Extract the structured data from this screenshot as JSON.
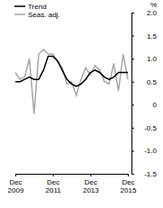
{
  "chart_data": {
    "type": "line",
    "ylabel": "%",
    "categories": [
      "Dec 2009",
      null,
      null,
      null,
      null,
      null,
      null,
      null,
      "Dec 2011",
      null,
      null,
      null,
      null,
      null,
      null,
      null,
      "Dec 2013",
      null,
      null,
      null,
      null,
      null,
      null,
      null,
      "Dec 2015"
    ],
    "series": [
      {
        "name": "Trend",
        "color": "#000000",
        "values": [
          0.5,
          0.5,
          0.55,
          0.6,
          0.55,
          0.55,
          0.75,
          1.05,
          1.05,
          0.95,
          0.75,
          0.55,
          0.45,
          0.4,
          0.45,
          0.55,
          0.7,
          0.75,
          0.7,
          0.6,
          0.55,
          0.6,
          0.7,
          0.7,
          0.7
        ]
      },
      {
        "name": "Seas. adj.",
        "color": "#a6a6a6",
        "values": [
          0.7,
          0.55,
          0.6,
          1.0,
          -0.2,
          1.1,
          1.2,
          1.1,
          1.1,
          0.95,
          0.8,
          0.45,
          0.5,
          0.2,
          0.55,
          0.8,
          0.65,
          0.85,
          0.75,
          0.5,
          0.45,
          0.9,
          0.3,
          1.1,
          0.55
        ]
      }
    ],
    "ylim": [
      -1.5,
      2.0
    ],
    "yticks": [
      -1.5,
      {
        "value": -1.0,
        "label": "-1.0"
      },
      -0.5,
      0,
      0.5,
      {
        "value": 1.0,
        "label": "1.0"
      },
      1.5,
      {
        "value": 2.0,
        "label": "2.0"
      }
    ],
    "legend": "top-left",
    "grid": false
  }
}
